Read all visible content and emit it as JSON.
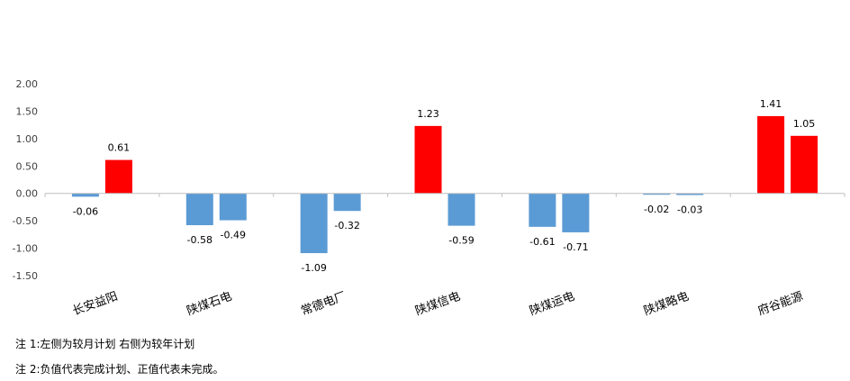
{
  "chart_data": {
    "type": "bar",
    "title": "",
    "xlabel": "",
    "ylabel": "",
    "ylim": [
      -1.5,
      2.0
    ],
    "yticks": [
      "2.00",
      "1.50",
      "1.00",
      "0.50",
      "0.00",
      "-0.50",
      "-1.00",
      "-1.50"
    ],
    "categories": [
      "长安益阳",
      "陕煤石电",
      "常德电厂",
      "陕煤信电",
      "陕煤运电",
      "陕煤略电",
      "府谷能源"
    ],
    "series": [
      {
        "values": [
          -0.06,
          -0.58,
          -1.09,
          1.23,
          -0.61,
          -0.02,
          1.41
        ],
        "labels": [
          "-0.06",
          "-0.58",
          "-1.09",
          "1.23",
          "-0.61",
          "-0.02",
          "1.41"
        ]
      },
      {
        "values": [
          0.61,
          -0.49,
          -0.32,
          -0.59,
          -0.71,
          -0.03,
          1.05
        ],
        "labels": [
          "0.61",
          "-0.49",
          "-0.32",
          "-0.59",
          "-0.71",
          "-0.03",
          "1.05"
        ]
      }
    ],
    "colors": {
      "positive": "#ff0000",
      "negative": "#5b9bd5",
      "axis": "#bfbfbf"
    },
    "grid": false,
    "legend": "none"
  },
  "notes": [
    "注 1:左侧为较月计划  右侧为较年计划",
    "注 2:负值代表完成计划、正值代表未完成。"
  ]
}
